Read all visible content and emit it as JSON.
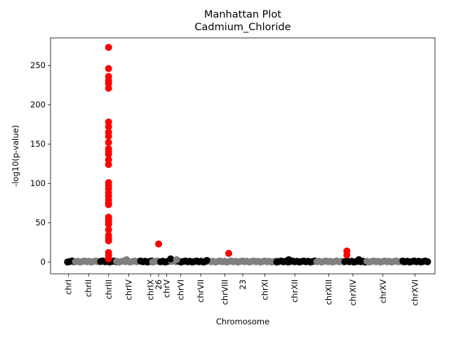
{
  "chart_data": {
    "type": "scatter",
    "title": "Manhattan Plot",
    "subtitle": "Cadmium_Chloride",
    "xlabel": "Chromosome",
    "ylabel": "-log10(p-value)",
    "ylim": [
      -15,
      285
    ],
    "y_ticks": [
      0,
      50,
      100,
      150,
      200,
      250
    ],
    "x_ticks": [
      {
        "label": "chrI",
        "pos": 1.0
      },
      {
        "label": "chrII",
        "pos": 2.0
      },
      {
        "label": "chrIII",
        "pos": 3.0
      },
      {
        "label": "chrIV",
        "pos": 4.0
      },
      {
        "label": "chrIX",
        "pos": 5.1
      },
      {
        "label": "26",
        "pos": 5.5
      },
      {
        "label": "chrV",
        "pos": 5.9
      },
      {
        "label": "chrVI",
        "pos": 6.6
      },
      {
        "label": "chrVII",
        "pos": 7.6
      },
      {
        "label": "chrVIII",
        "pos": 8.8
      },
      {
        "label": "23",
        "pos": 9.7
      },
      {
        "label": "chrXI",
        "pos": 10.8
      },
      {
        "label": "chrXII",
        "pos": 12.3
      },
      {
        "label": "chrXIII",
        "pos": 14.0
      },
      {
        "label": "chrXIV",
        "pos": 15.2
      },
      {
        "label": "chrXV",
        "pos": 16.7
      },
      {
        "label": "chrXVI",
        "pos": 18.3
      }
    ],
    "xlim": [
      0.1,
      19.3
    ],
    "colors": {
      "odd": "#000000",
      "even": "#808080",
      "significant": "#ff0000"
    },
    "baseline_segments": [
      {
        "start": 0.95,
        "end": 1.35,
        "color": "#000000"
      },
      {
        "start": 1.35,
        "end": 2.6,
        "color": "#808080"
      },
      {
        "start": 2.6,
        "end": 3.4,
        "color": "#000000"
      },
      {
        "start": 3.4,
        "end": 4.6,
        "color": "#808080"
      },
      {
        "start": 4.6,
        "end": 5.2,
        "color": "#000000"
      },
      {
        "start": 5.2,
        "end": 5.6,
        "color": "#808080"
      },
      {
        "start": 5.6,
        "end": 6.15,
        "color": "#000000"
      },
      {
        "start": 6.15,
        "end": 6.5,
        "color": "#808080"
      },
      {
        "start": 6.5,
        "end": 8.0,
        "color": "#000000"
      },
      {
        "start": 8.0,
        "end": 11.4,
        "color": "#808080"
      },
      {
        "start": 11.4,
        "end": 13.4,
        "color": "#000000"
      },
      {
        "start": 13.4,
        "end": 14.8,
        "color": "#808080"
      },
      {
        "start": 14.8,
        "end": 15.9,
        "color": "#000000"
      },
      {
        "start": 15.9,
        "end": 17.7,
        "color": "#808080"
      },
      {
        "start": 17.7,
        "end": 19.0,
        "color": "#000000"
      }
    ],
    "bumps": [
      {
        "x": 6.1,
        "y": 4,
        "color": "#000000"
      },
      {
        "x": 6.4,
        "y": 3,
        "color": "#808080"
      },
      {
        "x": 3.9,
        "y": 3,
        "color": "#808080"
      },
      {
        "x": 12.0,
        "y": 3,
        "color": "#000000"
      },
      {
        "x": 15.5,
        "y": 3,
        "color": "#000000"
      },
      {
        "x": 7.9,
        "y": 2,
        "color": "#000000"
      }
    ],
    "significant_points": [
      {
        "x": 3.0,
        "y": 273
      },
      {
        "x": 3.0,
        "y": 246
      },
      {
        "x": 3.0,
        "y": 236
      },
      {
        "x": 3.0,
        "y": 231
      },
      {
        "x": 3.0,
        "y": 227
      },
      {
        "x": 3.0,
        "y": 221
      },
      {
        "x": 3.0,
        "y": 178
      },
      {
        "x": 3.0,
        "y": 172
      },
      {
        "x": 3.0,
        "y": 165
      },
      {
        "x": 3.0,
        "y": 160
      },
      {
        "x": 3.0,
        "y": 152
      },
      {
        "x": 3.0,
        "y": 144
      },
      {
        "x": 3.0,
        "y": 140
      },
      {
        "x": 3.0,
        "y": 137
      },
      {
        "x": 3.0,
        "y": 130
      },
      {
        "x": 3.0,
        "y": 124
      },
      {
        "x": 3.0,
        "y": 101
      },
      {
        "x": 3.0,
        "y": 97
      },
      {
        "x": 3.0,
        "y": 93
      },
      {
        "x": 3.0,
        "y": 88
      },
      {
        "x": 3.0,
        "y": 84
      },
      {
        "x": 3.0,
        "y": 79
      },
      {
        "x": 3.0,
        "y": 75
      },
      {
        "x": 3.0,
        "y": 73
      },
      {
        "x": 3.0,
        "y": 57
      },
      {
        "x": 3.0,
        "y": 54
      },
      {
        "x": 3.0,
        "y": 51
      },
      {
        "x": 3.0,
        "y": 48
      },
      {
        "x": 3.0,
        "y": 41
      },
      {
        "x": 3.0,
        "y": 34
      },
      {
        "x": 3.0,
        "y": 30
      },
      {
        "x": 3.0,
        "y": 27
      },
      {
        "x": 3.0,
        "y": 12
      },
      {
        "x": 3.0,
        "y": 8
      },
      {
        "x": 3.0,
        "y": 4
      },
      {
        "x": 5.5,
        "y": 23
      },
      {
        "x": 9.0,
        "y": 11
      },
      {
        "x": 14.9,
        "y": 14
      },
      {
        "x": 14.9,
        "y": 9
      }
    ]
  }
}
